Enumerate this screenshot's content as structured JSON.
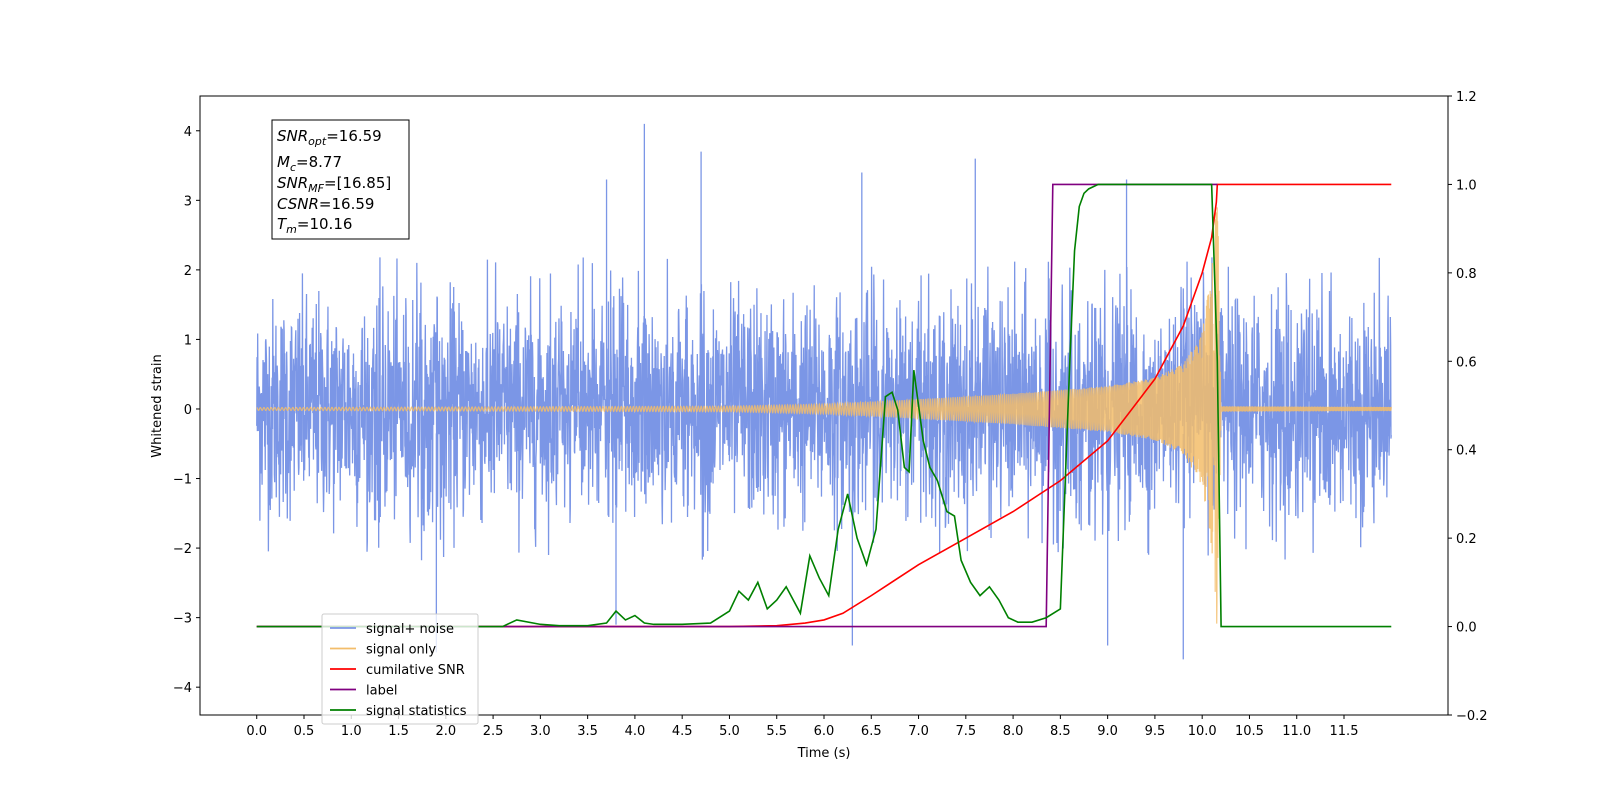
{
  "chart_data": {
    "type": "line",
    "title": "",
    "xlabel": "Time (s)",
    "ylabel": "Whitened strain",
    "ylabel_right": "",
    "xlim": [
      -0.6,
      12.6
    ],
    "ylim": [
      -4.4,
      4.5
    ],
    "ylim_right": [
      -0.2,
      1.2
    ],
    "x_ticks": [
      "0.0",
      "0.5",
      "1.0",
      "1.5",
      "2.0",
      "2.5",
      "3.0",
      "3.5",
      "4.0",
      "4.5",
      "5.0",
      "5.5",
      "6.0",
      "6.5",
      "7.0",
      "7.5",
      "8.0",
      "8.5",
      "9.0",
      "9.5",
      "10.0",
      "10.5",
      "11.0",
      "11.5"
    ],
    "y_ticks": [
      "−4",
      "−3",
      "−2",
      "−1",
      "0",
      "1",
      "2",
      "3",
      "4"
    ],
    "y_ticks_right": [
      "−0.2",
      "0.0",
      "0.2",
      "0.4",
      "0.6",
      "0.8",
      "1.0",
      "1.2"
    ],
    "grid": false,
    "legend_position": "lower-left",
    "info_box": {
      "snr_opt": "16.59",
      "mc": "8.77",
      "snr_mf": "[16.85]",
      "csnr": "16.59",
      "tm": "10.16"
    },
    "series": [
      {
        "name": "signal+ noise",
        "axis": "left",
        "color": "#7b96e6",
        "kind": "noise",
        "x_range": [
          0.0,
          12.0
        ],
        "envelope_max": 2.2,
        "peaks": [
          [
            4.1,
            4.1
          ],
          [
            4.7,
            3.7
          ],
          [
            7.6,
            3.6
          ],
          [
            3.7,
            3.3
          ],
          [
            9.2,
            3.3
          ],
          [
            6.4,
            3.4
          ],
          [
            1.9,
            -3.5
          ],
          [
            6.3,
            -3.4
          ],
          [
            9.8,
            -3.6
          ],
          [
            9.0,
            -3.4
          ],
          [
            3.8,
            -3.1
          ]
        ]
      },
      {
        "name": "signal only",
        "axis": "left",
        "color": "#f3bd6a",
        "kind": "chirp",
        "x_range": [
          0.0,
          12.0
        ],
        "merger_time": 10.16,
        "envelope_points": [
          [
            0.0,
            0.02
          ],
          [
            5.0,
            0.04
          ],
          [
            6.0,
            0.07
          ],
          [
            7.0,
            0.14
          ],
          [
            8.0,
            0.22
          ],
          [
            9.0,
            0.33
          ],
          [
            9.5,
            0.45
          ],
          [
            9.8,
            0.65
          ],
          [
            10.0,
            1.1
          ],
          [
            10.1,
            2.0
          ],
          [
            10.16,
            3.3
          ],
          [
            10.2,
            0.04
          ],
          [
            12.0,
            0.03
          ]
        ]
      },
      {
        "name": "cumilative SNR",
        "axis": "right",
        "color": "#ff0000",
        "x": [
          0.0,
          5.0,
          5.5,
          5.8,
          6.0,
          6.2,
          6.5,
          7.0,
          7.5,
          8.0,
          8.5,
          9.0,
          9.5,
          9.8,
          10.0,
          10.1,
          10.15,
          10.16,
          12.0
        ],
        "y": [
          0.0,
          0.0,
          0.002,
          0.008,
          0.015,
          0.03,
          0.07,
          0.14,
          0.2,
          0.26,
          0.33,
          0.42,
          0.56,
          0.68,
          0.8,
          0.88,
          0.96,
          1.0,
          1.0
        ]
      },
      {
        "name": "label",
        "axis": "right",
        "color": "#800080",
        "x": [
          0.0,
          8.35,
          8.42,
          8.48,
          10.16
        ],
        "y": [
          0.0,
          0.0,
          1.0,
          1.0,
          1.0
        ]
      },
      {
        "name": "signal statistics",
        "axis": "right",
        "color": "#008000",
        "x": [
          0.0,
          2.5,
          2.6,
          2.75,
          3.0,
          3.2,
          3.5,
          3.7,
          3.8,
          3.9,
          4.0,
          4.1,
          4.2,
          4.5,
          4.8,
          5.0,
          5.1,
          5.2,
          5.3,
          5.4,
          5.5,
          5.6,
          5.75,
          5.85,
          5.95,
          6.05,
          6.15,
          6.25,
          6.35,
          6.45,
          6.55,
          6.65,
          6.72,
          6.78,
          6.85,
          6.9,
          6.95,
          7.0,
          7.05,
          7.12,
          7.2,
          7.3,
          7.38,
          7.45,
          7.55,
          7.65,
          7.75,
          7.85,
          7.95,
          8.05,
          8.2,
          8.35,
          8.5,
          8.6,
          8.65,
          8.7,
          8.75,
          8.8,
          8.9,
          9.0,
          9.1,
          10.1,
          10.16,
          10.2,
          12.0
        ],
        "y": [
          0.0,
          0.0,
          0.0,
          0.015,
          0.005,
          0.002,
          0.002,
          0.008,
          0.035,
          0.015,
          0.025,
          0.008,
          0.005,
          0.005,
          0.008,
          0.035,
          0.08,
          0.06,
          0.1,
          0.04,
          0.06,
          0.09,
          0.03,
          0.16,
          0.11,
          0.07,
          0.22,
          0.3,
          0.2,
          0.14,
          0.22,
          0.52,
          0.53,
          0.49,
          0.36,
          0.35,
          0.58,
          0.5,
          0.42,
          0.36,
          0.33,
          0.26,
          0.25,
          0.15,
          0.1,
          0.07,
          0.09,
          0.06,
          0.02,
          0.01,
          0.01,
          0.02,
          0.04,
          0.6,
          0.85,
          0.95,
          0.98,
          0.99,
          1.0,
          1.0,
          1.0,
          1.0,
          0.6,
          0.0,
          0.0
        ]
      }
    ]
  }
}
